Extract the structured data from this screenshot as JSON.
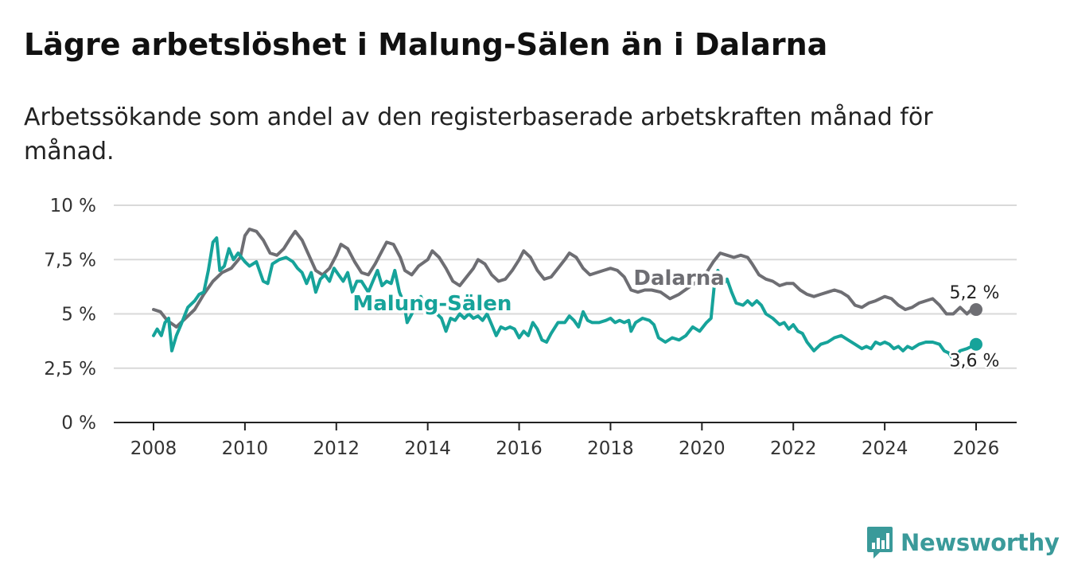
{
  "title": "Lägre arbetslöshet i Malung-Sälen än i Dalarna",
  "subtitle": "Arbetssökande som andel av den registerbaserade arbetskraften månad för månad.",
  "brand": {
    "name": "Newsworthy",
    "color": "#3a9a9a"
  },
  "chart_data": {
    "type": "line",
    "title": "Lägre arbetslöshet i Malung-Sälen än i Dalarna",
    "xlabel": "",
    "ylabel": "",
    "xlim": [
      2008,
      2026
    ],
    "ylim": [
      0,
      10
    ],
    "x_ticks": [
      2008,
      2010,
      2012,
      2014,
      2016,
      2018,
      2020,
      2022,
      2024,
      2026
    ],
    "x_tick_labels": [
      "2008",
      "2010",
      "2012",
      "2014",
      "2016",
      "2018",
      "2020",
      "2022",
      "2024",
      "2026"
    ],
    "y_ticks": [
      0,
      2.5,
      5,
      7.5,
      10
    ],
    "y_tick_labels": [
      "0 %",
      "2,5 %",
      "5 %",
      "7,5 %",
      "10 %"
    ],
    "grid": true,
    "series": [
      {
        "name": "Dalarna",
        "color": "#6e6e73",
        "end_label": "5,2 %",
        "points": [
          [
            2008.0,
            5.2
          ],
          [
            2008.15,
            5.1
          ],
          [
            2008.3,
            4.7
          ],
          [
            2008.5,
            4.4
          ],
          [
            2008.7,
            4.8
          ],
          [
            2008.9,
            5.2
          ],
          [
            2009.1,
            5.9
          ],
          [
            2009.3,
            6.5
          ],
          [
            2009.5,
            6.9
          ],
          [
            2009.7,
            7.1
          ],
          [
            2009.9,
            7.6
          ],
          [
            2010.0,
            8.6
          ],
          [
            2010.1,
            8.9
          ],
          [
            2010.25,
            8.8
          ],
          [
            2010.4,
            8.4
          ],
          [
            2010.55,
            7.8
          ],
          [
            2010.7,
            7.7
          ],
          [
            2010.85,
            8.0
          ],
          [
            2011.0,
            8.5
          ],
          [
            2011.1,
            8.8
          ],
          [
            2011.25,
            8.4
          ],
          [
            2011.4,
            7.7
          ],
          [
            2011.55,
            7.0
          ],
          [
            2011.7,
            6.8
          ],
          [
            2011.85,
            7.1
          ],
          [
            2012.0,
            7.7
          ],
          [
            2012.1,
            8.2
          ],
          [
            2012.25,
            8.0
          ],
          [
            2012.4,
            7.4
          ],
          [
            2012.55,
            6.9
          ],
          [
            2012.7,
            6.8
          ],
          [
            2012.85,
            7.3
          ],
          [
            2013.0,
            7.9
          ],
          [
            2013.1,
            8.3
          ],
          [
            2013.25,
            8.2
          ],
          [
            2013.4,
            7.6
          ],
          [
            2013.5,
            7.0
          ],
          [
            2013.65,
            6.8
          ],
          [
            2013.8,
            7.2
          ],
          [
            2014.0,
            7.5
          ],
          [
            2014.1,
            7.9
          ],
          [
            2014.25,
            7.6
          ],
          [
            2014.4,
            7.1
          ],
          [
            2014.55,
            6.5
          ],
          [
            2014.7,
            6.3
          ],
          [
            2014.85,
            6.7
          ],
          [
            2015.0,
            7.1
          ],
          [
            2015.1,
            7.5
          ],
          [
            2015.25,
            7.3
          ],
          [
            2015.4,
            6.8
          ],
          [
            2015.55,
            6.5
          ],
          [
            2015.7,
            6.6
          ],
          [
            2015.85,
            7.0
          ],
          [
            2016.0,
            7.5
          ],
          [
            2016.1,
            7.9
          ],
          [
            2016.25,
            7.6
          ],
          [
            2016.4,
            7.0
          ],
          [
            2016.55,
            6.6
          ],
          [
            2016.7,
            6.7
          ],
          [
            2016.85,
            7.1
          ],
          [
            2017.0,
            7.5
          ],
          [
            2017.1,
            7.8
          ],
          [
            2017.25,
            7.6
          ],
          [
            2017.4,
            7.1
          ],
          [
            2017.55,
            6.8
          ],
          [
            2017.7,
            6.9
          ],
          [
            2017.85,
            7.0
          ],
          [
            2018.0,
            7.1
          ],
          [
            2018.15,
            7.0
          ],
          [
            2018.3,
            6.7
          ],
          [
            2018.45,
            6.1
          ],
          [
            2018.6,
            6.0
          ],
          [
            2018.75,
            6.1
          ],
          [
            2018.9,
            6.1
          ],
          [
            2019.1,
            6.0
          ],
          [
            2019.3,
            5.7
          ],
          [
            2019.5,
            5.9
          ],
          [
            2019.7,
            6.2
          ],
          [
            2019.9,
            6.5
          ],
          [
            2020.1,
            6.9
          ],
          [
            2020.25,
            7.4
          ],
          [
            2020.4,
            7.8
          ],
          [
            2020.55,
            7.7
          ],
          [
            2020.7,
            7.6
          ],
          [
            2020.85,
            7.7
          ],
          [
            2021.0,
            7.6
          ],
          [
            2021.1,
            7.3
          ],
          [
            2021.25,
            6.8
          ],
          [
            2021.4,
            6.6
          ],
          [
            2021.55,
            6.5
          ],
          [
            2021.7,
            6.3
          ],
          [
            2021.85,
            6.4
          ],
          [
            2022.0,
            6.4
          ],
          [
            2022.15,
            6.1
          ],
          [
            2022.3,
            5.9
          ],
          [
            2022.45,
            5.8
          ],
          [
            2022.6,
            5.9
          ],
          [
            2022.75,
            6.0
          ],
          [
            2022.9,
            6.1
          ],
          [
            2023.05,
            6.0
          ],
          [
            2023.2,
            5.8
          ],
          [
            2023.35,
            5.4
          ],
          [
            2023.5,
            5.3
          ],
          [
            2023.65,
            5.5
          ],
          [
            2023.8,
            5.6
          ],
          [
            2024.0,
            5.8
          ],
          [
            2024.15,
            5.7
          ],
          [
            2024.3,
            5.4
          ],
          [
            2024.45,
            5.2
          ],
          [
            2024.6,
            5.3
          ],
          [
            2024.75,
            5.5
          ],
          [
            2024.9,
            5.6
          ],
          [
            2025.05,
            5.7
          ],
          [
            2025.2,
            5.4
          ],
          [
            2025.35,
            5.0
          ],
          [
            2025.5,
            5.0
          ],
          [
            2025.65,
            5.3
          ],
          [
            2025.8,
            5.0
          ],
          [
            2025.9,
            5.2
          ],
          [
            2026.0,
            5.2
          ]
        ]
      },
      {
        "name": "Malung-Sälen",
        "color": "#16a39a",
        "end_label": "3,6 %",
        "points": [
          [
            2008.0,
            4.0
          ],
          [
            2008.08,
            4.3
          ],
          [
            2008.17,
            4.0
          ],
          [
            2008.25,
            4.6
          ],
          [
            2008.33,
            4.8
          ],
          [
            2008.4,
            3.3
          ],
          [
            2008.5,
            4.0
          ],
          [
            2008.6,
            4.5
          ],
          [
            2008.75,
            5.3
          ],
          [
            2008.9,
            5.6
          ],
          [
            2009.0,
            5.9
          ],
          [
            2009.1,
            6.0
          ],
          [
            2009.2,
            7.0
          ],
          [
            2009.3,
            8.3
          ],
          [
            2009.38,
            8.5
          ],
          [
            2009.45,
            7.0
          ],
          [
            2009.55,
            7.2
          ],
          [
            2009.65,
            8.0
          ],
          [
            2009.75,
            7.5
          ],
          [
            2009.85,
            7.8
          ],
          [
            2010.0,
            7.4
          ],
          [
            2010.1,
            7.2
          ],
          [
            2010.25,
            7.4
          ],
          [
            2010.4,
            6.5
          ],
          [
            2010.5,
            6.4
          ],
          [
            2010.6,
            7.3
          ],
          [
            2010.75,
            7.5
          ],
          [
            2010.9,
            7.6
          ],
          [
            2011.05,
            7.4
          ],
          [
            2011.15,
            7.1
          ],
          [
            2011.25,
            6.9
          ],
          [
            2011.35,
            6.4
          ],
          [
            2011.45,
            6.9
          ],
          [
            2011.55,
            6.0
          ],
          [
            2011.65,
            6.6
          ],
          [
            2011.75,
            6.8
          ],
          [
            2011.85,
            6.5
          ],
          [
            2011.95,
            7.1
          ],
          [
            2012.05,
            6.8
          ],
          [
            2012.15,
            6.5
          ],
          [
            2012.25,
            6.9
          ],
          [
            2012.35,
            6.0
          ],
          [
            2012.45,
            6.5
          ],
          [
            2012.55,
            6.5
          ],
          [
            2012.7,
            6.0
          ],
          [
            2012.8,
            6.5
          ],
          [
            2012.9,
            7.0
          ],
          [
            2013.0,
            6.3
          ],
          [
            2013.1,
            6.5
          ],
          [
            2013.2,
            6.4
          ],
          [
            2013.28,
            7.0
          ],
          [
            2013.38,
            6.0
          ],
          [
            2013.48,
            5.5
          ],
          [
            2013.55,
            4.6
          ],
          [
            2013.65,
            5.0
          ],
          [
            2013.75,
            5.5
          ],
          [
            2013.85,
            5.8
          ],
          [
            2013.95,
            5.3
          ],
          [
            2014.1,
            5.1
          ],
          [
            2014.2,
            5.0
          ],
          [
            2014.3,
            4.8
          ],
          [
            2014.4,
            4.2
          ],
          [
            2014.5,
            4.8
          ],
          [
            2014.6,
            4.7
          ],
          [
            2014.7,
            5.0
          ],
          [
            2014.8,
            4.8
          ],
          [
            2014.9,
            5.0
          ],
          [
            2015.0,
            4.8
          ],
          [
            2015.1,
            4.9
          ],
          [
            2015.2,
            4.7
          ],
          [
            2015.3,
            5.0
          ],
          [
            2015.4,
            4.5
          ],
          [
            2015.5,
            4.0
          ],
          [
            2015.6,
            4.4
          ],
          [
            2015.7,
            4.3
          ],
          [
            2015.8,
            4.4
          ],
          [
            2015.9,
            4.3
          ],
          [
            2016.0,
            3.9
          ],
          [
            2016.1,
            4.2
          ],
          [
            2016.2,
            4.0
          ],
          [
            2016.3,
            4.6
          ],
          [
            2016.4,
            4.3
          ],
          [
            2016.5,
            3.8
          ],
          [
            2016.6,
            3.7
          ],
          [
            2016.7,
            4.1
          ],
          [
            2016.85,
            4.6
          ],
          [
            2017.0,
            4.6
          ],
          [
            2017.1,
            4.9
          ],
          [
            2017.2,
            4.7
          ],
          [
            2017.3,
            4.4
          ],
          [
            2017.4,
            5.1
          ],
          [
            2017.5,
            4.7
          ],
          [
            2017.6,
            4.6
          ],
          [
            2017.75,
            4.6
          ],
          [
            2017.9,
            4.7
          ],
          [
            2018.0,
            4.8
          ],
          [
            2018.1,
            4.6
          ],
          [
            2018.2,
            4.7
          ],
          [
            2018.3,
            4.6
          ],
          [
            2018.4,
            4.7
          ],
          [
            2018.45,
            4.2
          ],
          [
            2018.55,
            4.6
          ],
          [
            2018.7,
            4.8
          ],
          [
            2018.85,
            4.7
          ],
          [
            2018.95,
            4.5
          ],
          [
            2019.05,
            3.9
          ],
          [
            2019.2,
            3.7
          ],
          [
            2019.35,
            3.9
          ],
          [
            2019.5,
            3.8
          ],
          [
            2019.65,
            4.0
          ],
          [
            2019.8,
            4.4
          ],
          [
            2019.95,
            4.2
          ],
          [
            2020.1,
            4.6
          ],
          [
            2020.2,
            4.8
          ],
          [
            2020.28,
            6.5
          ],
          [
            2020.35,
            7.0
          ],
          [
            2020.45,
            6.3
          ],
          [
            2020.55,
            6.6
          ],
          [
            2020.65,
            6.0
          ],
          [
            2020.75,
            5.5
          ],
          [
            2020.9,
            5.4
          ],
          [
            2021.0,
            5.6
          ],
          [
            2021.1,
            5.4
          ],
          [
            2021.2,
            5.6
          ],
          [
            2021.3,
            5.4
          ],
          [
            2021.4,
            5.0
          ],
          [
            2021.55,
            4.8
          ],
          [
            2021.7,
            4.5
          ],
          [
            2021.8,
            4.6
          ],
          [
            2021.9,
            4.3
          ],
          [
            2022.0,
            4.5
          ],
          [
            2022.1,
            4.2
          ],
          [
            2022.2,
            4.1
          ],
          [
            2022.3,
            3.7
          ],
          [
            2022.45,
            3.3
          ],
          [
            2022.6,
            3.6
          ],
          [
            2022.75,
            3.7
          ],
          [
            2022.9,
            3.9
          ],
          [
            2023.05,
            4.0
          ],
          [
            2023.2,
            3.8
          ],
          [
            2023.35,
            3.6
          ],
          [
            2023.5,
            3.4
          ],
          [
            2023.6,
            3.5
          ],
          [
            2023.7,
            3.4
          ],
          [
            2023.8,
            3.7
          ],
          [
            2023.9,
            3.6
          ],
          [
            2024.0,
            3.7
          ],
          [
            2024.1,
            3.6
          ],
          [
            2024.2,
            3.4
          ],
          [
            2024.3,
            3.5
          ],
          [
            2024.4,
            3.3
          ],
          [
            2024.5,
            3.5
          ],
          [
            2024.6,
            3.4
          ],
          [
            2024.75,
            3.6
          ],
          [
            2024.9,
            3.7
          ],
          [
            2025.05,
            3.7
          ],
          [
            2025.2,
            3.6
          ],
          [
            2025.3,
            3.3
          ],
          [
            2025.4,
            3.2
          ],
          [
            2025.5,
            2.9
          ],
          [
            2025.65,
            3.3
          ],
          [
            2025.8,
            3.4
          ],
          [
            2025.9,
            3.5
          ],
          [
            2026.0,
            3.6
          ]
        ]
      }
    ]
  }
}
